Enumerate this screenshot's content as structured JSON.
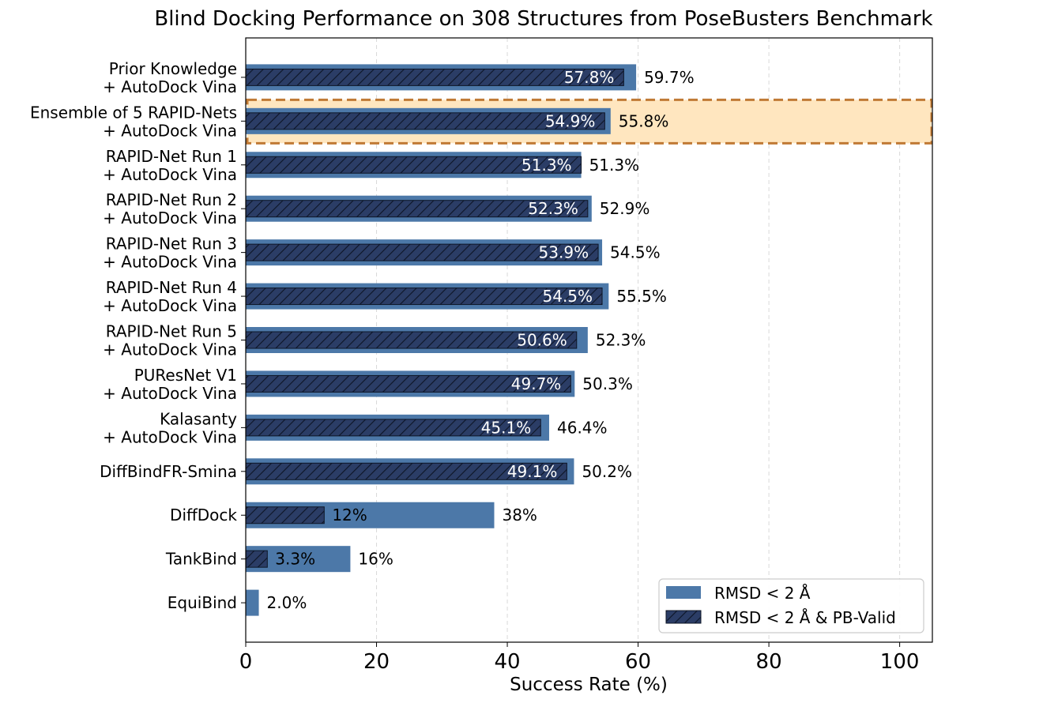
{
  "chart_data": {
    "type": "bar",
    "orientation": "horizontal",
    "title": "Blind Docking Performance on 308 Structures from PoseBusters Benchmark",
    "xlabel": "Success Rate (%)",
    "ylabel": "",
    "xlim": [
      0,
      105
    ],
    "xticks": [
      0,
      20,
      40,
      60,
      80,
      100
    ],
    "grid": "vertical dashed",
    "categories": [
      [
        "Prior Knowledge",
        "+ AutoDock Vina"
      ],
      [
        "Ensemble of 5 RAPID-Nets",
        "+ AutoDock Vina"
      ],
      [
        "RAPID-Net Run 1",
        "+ AutoDock Vina"
      ],
      [
        "RAPID-Net Run 2",
        "+ AutoDock Vina"
      ],
      [
        "RAPID-Net Run 3",
        "+ AutoDock Vina"
      ],
      [
        "RAPID-Net Run 4",
        "+ AutoDock Vina"
      ],
      [
        "RAPID-Net Run 5",
        "+ AutoDock Vina"
      ],
      [
        "PUResNet V1",
        "+ AutoDock Vina"
      ],
      [
        "Kalasanty",
        "+ AutoDock Vina"
      ],
      [
        "DiffBindFR-Smina"
      ],
      [
        "DiffDock"
      ],
      [
        "TankBind"
      ],
      [
        "EquiBind"
      ]
    ],
    "series": [
      {
        "name": "RMSD < 2 Å",
        "color": "#4c78a8",
        "values": [
          59.7,
          55.8,
          51.3,
          52.9,
          54.5,
          55.5,
          52.3,
          50.3,
          46.4,
          50.2,
          38,
          16,
          2.0
        ],
        "labels": [
          "59.7%",
          "55.8%",
          "51.3%",
          "52.9%",
          "54.5%",
          "55.5%",
          "52.3%",
          "50.3%",
          "46.4%",
          "50.2%",
          "38%",
          "16%",
          "2.0%"
        ]
      },
      {
        "name": "RMSD < 2 Å & PB-Valid",
        "color": "#2b3d66",
        "hatch": "diagonal",
        "values": [
          57.8,
          54.9,
          51.3,
          52.3,
          53.9,
          54.5,
          50.6,
          49.7,
          45.1,
          49.1,
          12,
          3.3,
          null
        ],
        "labels": [
          "57.8%",
          "54.9%",
          "51.3%",
          "52.3%",
          "53.9%",
          "54.5%",
          "50.6%",
          "49.7%",
          "45.1%",
          "49.1%",
          "12%",
          "3.3%",
          null
        ]
      }
    ],
    "highlight": {
      "category_index": 1,
      "fill": "#ffe6bf",
      "stroke": "#c07a35",
      "style": "dashed"
    },
    "legend": {
      "placement": "bottom-right",
      "entries": [
        "RMSD < 2 Å",
        "RMSD < 2 Å & PB-Valid"
      ]
    }
  }
}
